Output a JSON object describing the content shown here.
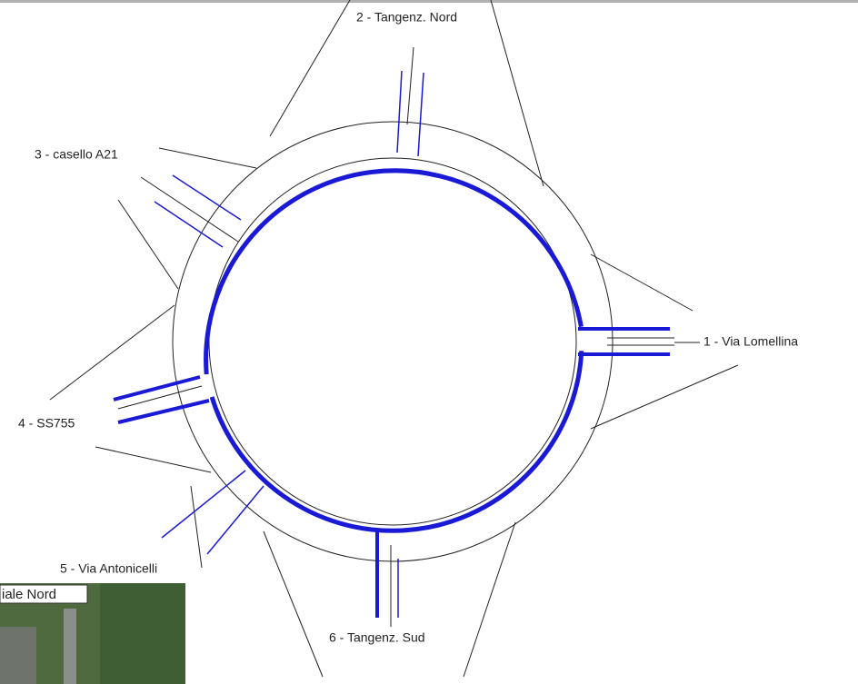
{
  "legs": [
    {
      "label": "1 -  Via Lomellina"
    },
    {
      "label": "2 -  Tangenz. Nord"
    },
    {
      "label": "3 -  casello A21"
    },
    {
      "label": "4 -  SS755"
    },
    {
      "label": "5 -  Via Antonicelli"
    },
    {
      "label": "6 -  Tangenz. Sud"
    }
  ],
  "inset": {
    "label": "iale Nord"
  }
}
